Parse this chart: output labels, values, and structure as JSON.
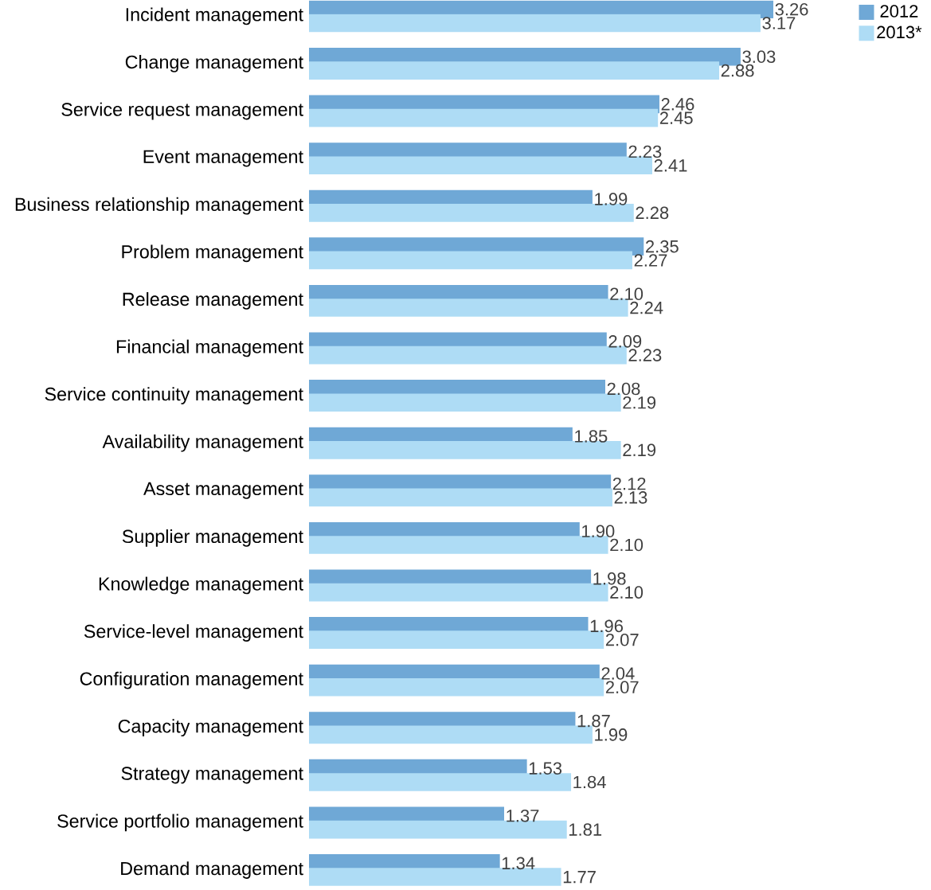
{
  "chart_data": {
    "type": "bar",
    "orientation": "horizontal",
    "legend": "top right",
    "categories": [
      "Incident management",
      "Change management",
      "Service request management",
      "Event management",
      "Business relationship management",
      "Problem management",
      "Release management",
      "Financial management",
      "Service continuity management",
      "Availability management",
      "Asset management",
      "Supplier management",
      "Knowledge management",
      "Service-level management",
      "Configuration management",
      "Capacity management",
      "Strategy management",
      "Service portfolio management",
      "Demand management"
    ],
    "series": [
      {
        "name": "2012",
        "color": "#6fa8d6",
        "values": [
          3.26,
          3.03,
          2.46,
          2.23,
          1.99,
          2.35,
          2.1,
          2.09,
          2.08,
          1.85,
          2.12,
          1.9,
          1.98,
          1.96,
          2.04,
          1.87,
          1.53,
          1.37,
          1.34
        ],
        "value_labels": [
          "3.26",
          "3.03",
          "2.46",
          "2.23",
          "1.99",
          "2.35",
          "2.10",
          "2.09",
          "2.08",
          "1.85",
          "2.12",
          "1.90",
          "1.98",
          "1.96",
          "2.04",
          "1.87",
          "1.53",
          "1.37",
          "1.34"
        ]
      },
      {
        "name": "2013*",
        "color": "#aedcf5",
        "values": [
          3.17,
          2.88,
          2.45,
          2.41,
          2.28,
          2.27,
          2.24,
          2.23,
          2.19,
          2.19,
          2.13,
          2.1,
          2.1,
          2.07,
          2.07,
          1.99,
          1.84,
          1.81,
          1.77
        ],
        "value_labels": [
          "3.17",
          "2.88",
          "2.45",
          "2.41",
          "2.28",
          "2.27",
          "2.24",
          "2.23",
          "2.19",
          "2.19",
          "2.13",
          "2.10",
          "2.10",
          "2.07",
          "2.07",
          "1.99",
          "1.84",
          "1.81",
          "1.77"
        ]
      }
    ]
  }
}
